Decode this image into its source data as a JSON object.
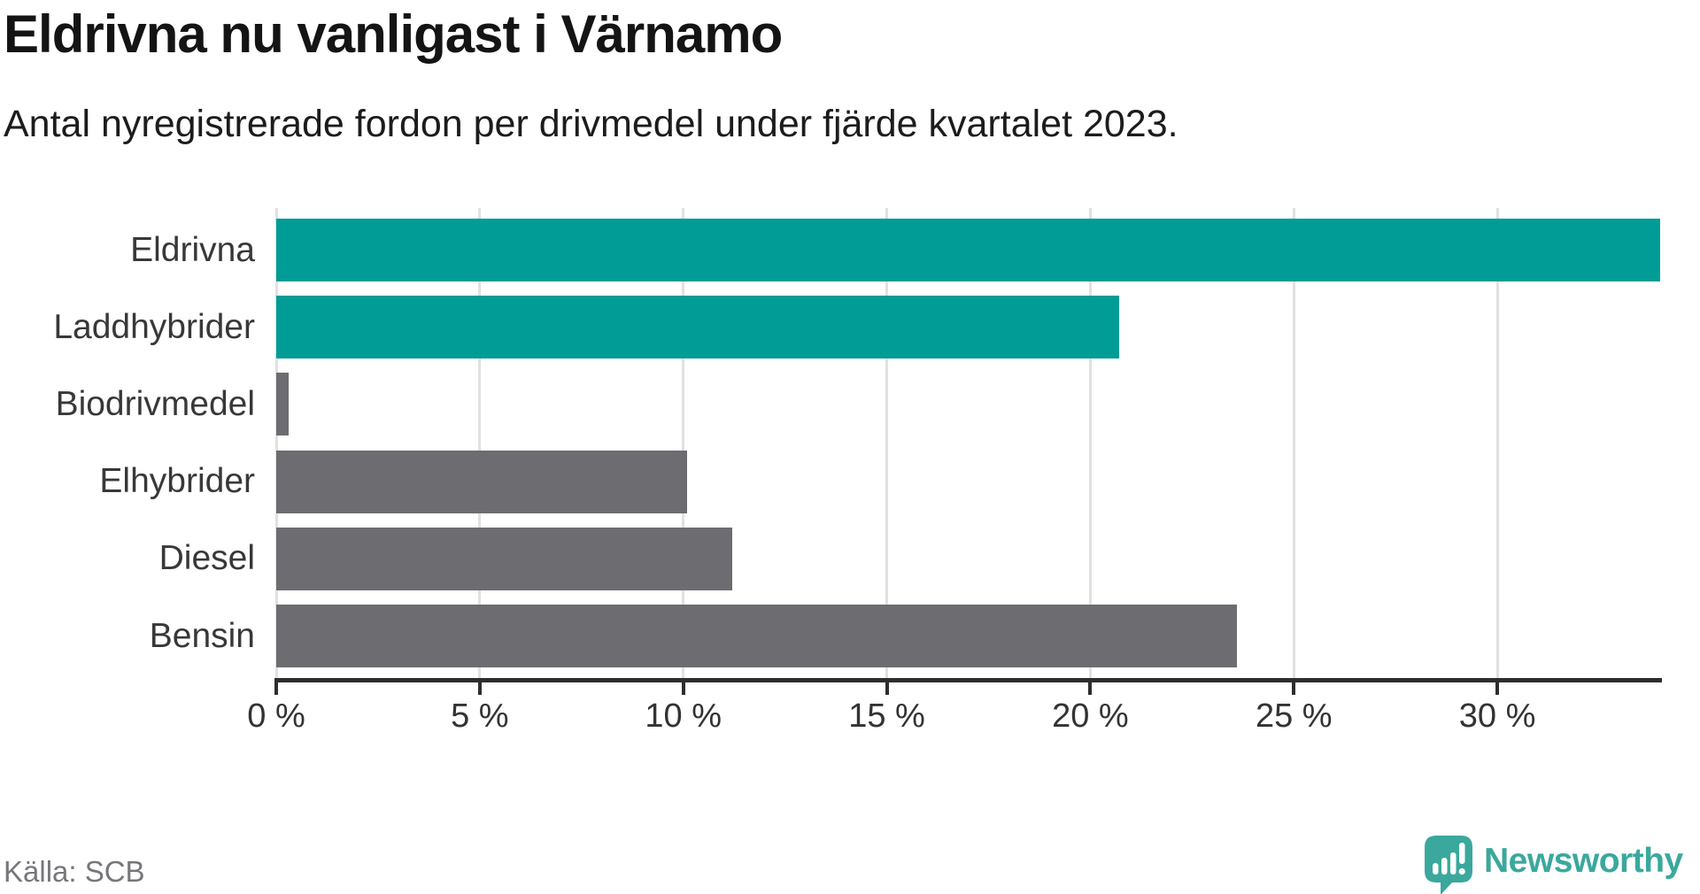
{
  "header": {
    "title": "Eldrivna nu vanligast i Värnamo",
    "subtitle": "Antal nyregistrerade fordon per drivmedel under fjärde kvartalet 2023."
  },
  "footer": {
    "source": "Källa: SCB",
    "brand": "Newsworthy",
    "brand_icon": "newsworthy-pin-chart-icon"
  },
  "colors": {
    "highlight_bar": "#009c95",
    "default_bar": "#6c6c71",
    "grid": "#e1e1e1",
    "axis": "#2e2e2e",
    "title_text": "#141414",
    "label_text": "#383838",
    "muted_text": "#76767c",
    "logo": "#3ba89d"
  },
  "chart_data": {
    "type": "bar",
    "orientation": "horizontal",
    "title": "Eldrivna nu vanligast i Värnamo",
    "subtitle": "Antal nyregistrerade fordon per drivmedel under fjärde kvartalet 2023.",
    "categories": [
      "Eldrivna",
      "Laddhybrider",
      "Biodrivmedel",
      "Elhybrider",
      "Diesel",
      "Bensin"
    ],
    "values": [
      34.0,
      20.7,
      0.3,
      10.1,
      11.2,
      23.6
    ],
    "unit": "%",
    "bar_colors": [
      "#009c95",
      "#009c95",
      "#6c6c71",
      "#6c6c71",
      "#6c6c71",
      "#6c6c71"
    ],
    "xtick_values": [
      0,
      5,
      10,
      15,
      20,
      25,
      30
    ],
    "xtick_labels": [
      "0 %",
      "5 %",
      "10 %",
      "15 %",
      "20 %",
      "25 %",
      "30 %"
    ],
    "xlim": [
      0,
      34.05
    ],
    "grid": true,
    "legend": "none",
    "value_labels": false,
    "source_note": "Källa: SCB"
  }
}
